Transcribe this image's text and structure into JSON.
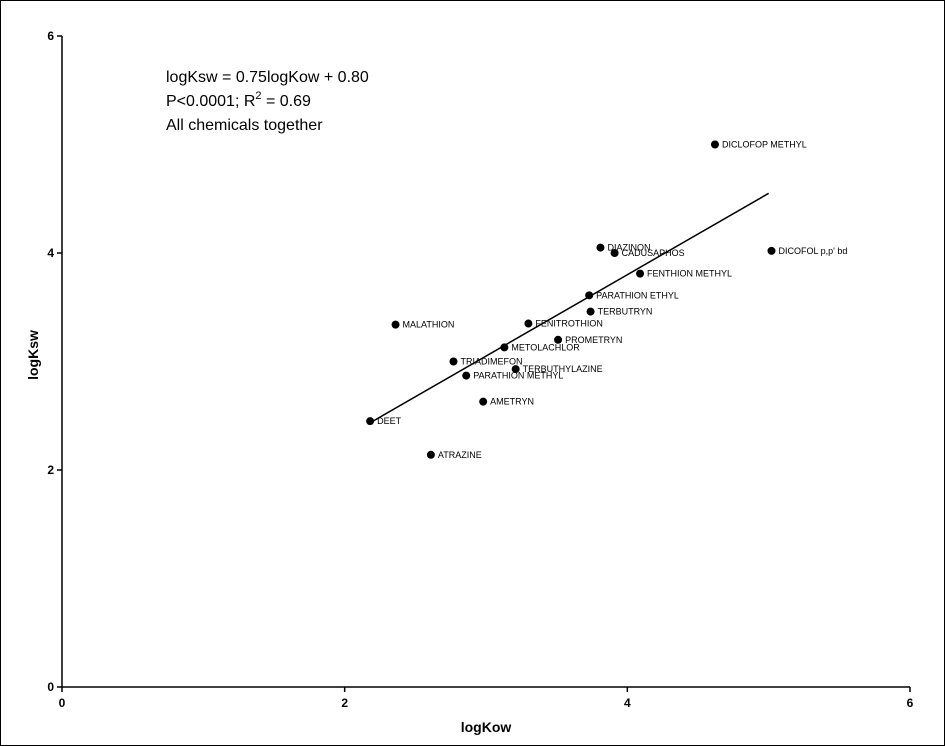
{
  "chart_data": {
    "type": "scatter",
    "xlabel": "logKow",
    "ylabel": "logKsw",
    "xlim": [
      0,
      6
    ],
    "ylim": [
      0,
      6
    ],
    "x_ticks": [
      0,
      2,
      4,
      6
    ],
    "y_ticks": [
      0,
      2,
      4,
      6
    ],
    "grid": false,
    "annotation": {
      "line1": "logKsw = 0.75logKow + 0.80",
      "line2_prefix": "P<0.0001; R",
      "line2_sup": "2",
      "line2_suffix": " = 0.69",
      "line3": "All chemicals together"
    },
    "fit_line": {
      "slope": 0.75,
      "intercept": 0.8,
      "x_start": 2.18,
      "x_end": 5.0
    },
    "points": [
      {
        "label": "DEET",
        "x": 2.18,
        "y": 2.45
      },
      {
        "label": "MALATHION",
        "x": 2.36,
        "y": 3.34
      },
      {
        "label": "ATRAZINE",
        "x": 2.61,
        "y": 2.14
      },
      {
        "label": "TRIADIMEFON",
        "x": 2.77,
        "y": 3.0
      },
      {
        "label": "PARATHION METHYL",
        "x": 2.86,
        "y": 2.87
      },
      {
        "label": "AMETRYN",
        "x": 2.98,
        "y": 2.63
      },
      {
        "label": "METOLACHLOR",
        "x": 3.13,
        "y": 3.13
      },
      {
        "label": "TERBUTHYLAZINE",
        "x": 3.21,
        "y": 2.93
      },
      {
        "label": "FENITROTHION",
        "x": 3.3,
        "y": 3.35
      },
      {
        "label": "PROMETRYN",
        "x": 3.51,
        "y": 3.2
      },
      {
        "label": "PARATHION ETHYL",
        "x": 3.73,
        "y": 3.61
      },
      {
        "label": "TERBUTRYN",
        "x": 3.74,
        "y": 3.46
      },
      {
        "label": "DIAZINON",
        "x": 3.81,
        "y": 4.05
      },
      {
        "label": "CADUSAPHOS",
        "x": 3.91,
        "y": 4.0
      },
      {
        "label": "FENTHION METHYL",
        "x": 4.09,
        "y": 3.81
      },
      {
        "label": "DICLOFOP METHYL",
        "x": 4.62,
        "y": 5.0
      },
      {
        "label": "DICOFOL p,p' bd",
        "x": 5.02,
        "y": 4.02
      }
    ]
  }
}
